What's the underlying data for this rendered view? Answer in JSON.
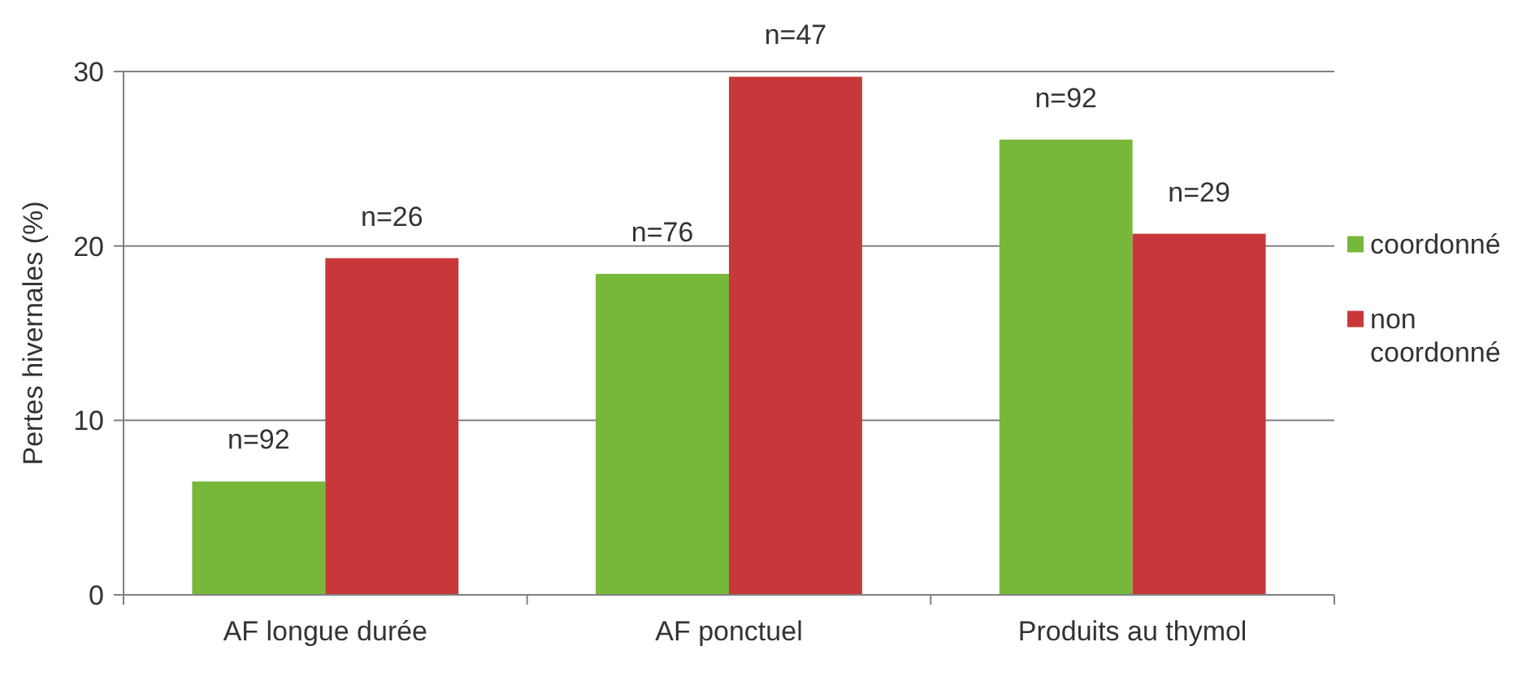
{
  "chart_data": {
    "type": "bar",
    "ylabel": "Pertes hivernales  (%)",
    "categories": [
      "AF longue durée",
      "AF ponctuel",
      "Produits au thymol"
    ],
    "series": [
      {
        "name": "coordonné",
        "color": "#77b83a",
        "values": [
          6.5,
          18.4,
          26.1
        ]
      },
      {
        "name": "non coordonné",
        "color": "#c8383a",
        "values": [
          19.3,
          29.7,
          20.7
        ]
      }
    ],
    "ylim": [
      0,
      30
    ],
    "yticks": [
      0,
      10,
      20,
      30
    ],
    "grid": "y",
    "legend": "right",
    "annotations": [
      {
        "text": "n=92",
        "x": "AF longue durée",
        "y": 6.5
      },
      {
        "text": "n=26",
        "x": "AF longue durée",
        "y": 19.3
      },
      {
        "text": "n=76",
        "x": "AF ponctuel",
        "y": 18.4
      },
      {
        "text": "n=47",
        "x": "AF ponctuel",
        "y": 29.7
      },
      {
        "text": "n=92",
        "x": "Produits au thymol",
        "y": 26.1
      },
      {
        "text": "n=29",
        "x": "Produits au thymol",
        "y": 20.7
      }
    ]
  }
}
